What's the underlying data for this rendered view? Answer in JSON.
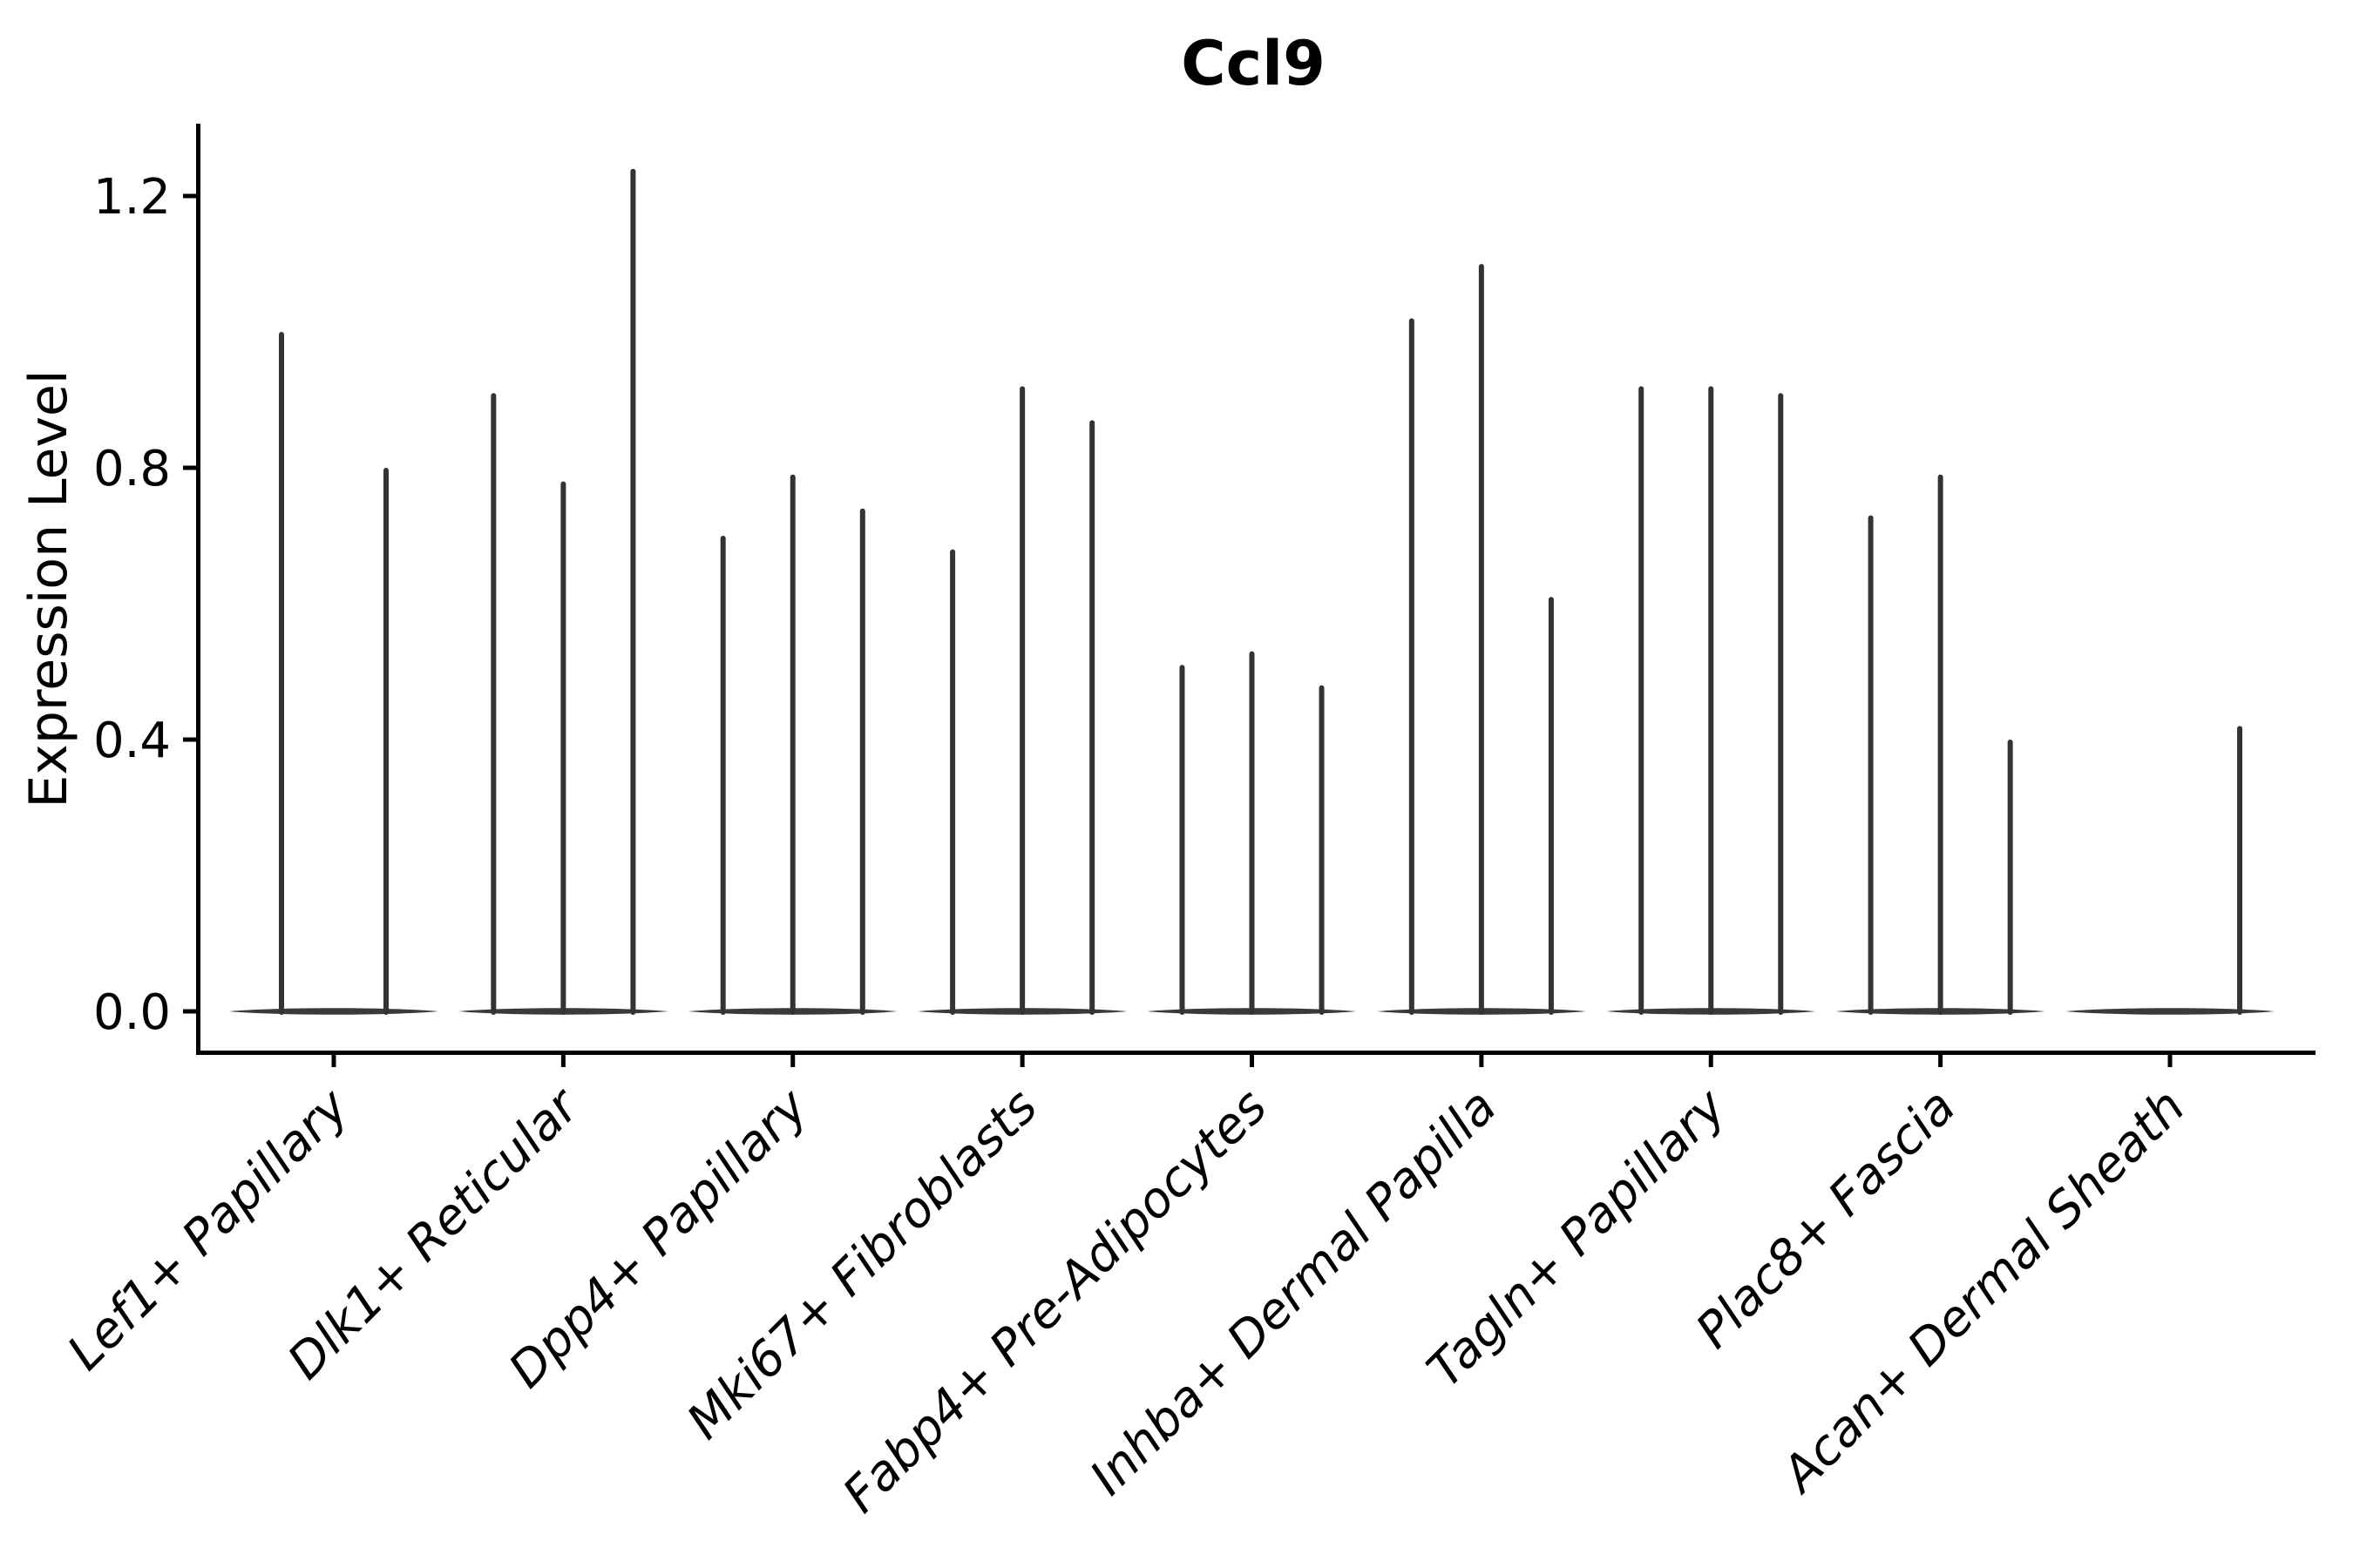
{
  "title": "Ccl9",
  "chart_data": {
    "type": "violin",
    "title": "Ccl9",
    "xlabel": "",
    "ylabel": "Expression Level",
    "ylim": [
      0,
      1.31
    ],
    "yticks": [
      0.0,
      0.4,
      0.8,
      1.2
    ],
    "ytick_labels": [
      "0.0",
      "0.4",
      "0.8",
      "1.2"
    ],
    "grid": false,
    "legend": "none",
    "categories": [
      "Lef1+ Papillary",
      "Dlk1+ Reticular",
      "Dpp4+ Papillary",
      "Mki67+ Fibroblasts",
      "Fabp4+ Pre-Adipocytes",
      "Inhba+ Dermal Papilla",
      "Tagln+ Papillary",
      "Plac8+ Fascia",
      "Acan+ Dermal Sheath"
    ],
    "series": [
      {
        "category": "Lef1+ Papillary",
        "baseline_value": 0.0,
        "spikes": [
          {
            "x_frac": -0.5,
            "value": 1.0
          },
          {
            "x_frac": 0.5,
            "value": 0.8
          }
        ]
      },
      {
        "category": "Dlk1+ Reticular",
        "baseline_value": 0.0,
        "spikes": [
          {
            "x_frac": -0.667,
            "value": 0.91
          },
          {
            "x_frac": 0.0,
            "value": 0.78
          },
          {
            "x_frac": 0.667,
            "value": 1.24
          }
        ]
      },
      {
        "category": "Dpp4+ Papillary",
        "baseline_value": 0.0,
        "spikes": [
          {
            "x_frac": -0.667,
            "value": 0.7
          },
          {
            "x_frac": 0.0,
            "value": 0.79
          },
          {
            "x_frac": 0.667,
            "value": 0.74
          }
        ]
      },
      {
        "category": "Mki67+ Fibroblasts",
        "baseline_value": 0.0,
        "spikes": [
          {
            "x_frac": -0.667,
            "value": 0.68
          },
          {
            "x_frac": 0.0,
            "value": 0.92
          },
          {
            "x_frac": 0.667,
            "value": 0.87
          }
        ]
      },
      {
        "category": "Fabp4+ Pre-Adipocytes",
        "baseline_value": 0.0,
        "spikes": [
          {
            "x_frac": -0.667,
            "value": 0.51
          },
          {
            "x_frac": 0.0,
            "value": 0.53
          },
          {
            "x_frac": 0.667,
            "value": 0.48
          }
        ]
      },
      {
        "category": "Inhba+ Dermal Papilla",
        "baseline_value": 0.0,
        "spikes": [
          {
            "x_frac": -0.667,
            "value": 1.02
          },
          {
            "x_frac": 0.0,
            "value": 1.1
          },
          {
            "x_frac": 0.667,
            "value": 0.61
          }
        ]
      },
      {
        "category": "Tagln+ Papillary",
        "baseline_value": 0.0,
        "spikes": [
          {
            "x_frac": -0.667,
            "value": 0.92
          },
          {
            "x_frac": 0.0,
            "value": 0.92
          },
          {
            "x_frac": 0.667,
            "value": 0.91
          }
        ]
      },
      {
        "category": "Plac8+ Fascia",
        "baseline_value": 0.0,
        "spikes": [
          {
            "x_frac": -0.667,
            "value": 0.73
          },
          {
            "x_frac": 0.0,
            "value": 0.79
          },
          {
            "x_frac": 0.667,
            "value": 0.4
          }
        ]
      },
      {
        "category": "Acan+ Dermal Sheath",
        "baseline_value": 0.0,
        "spikes": [
          {
            "x_frac": 0.667,
            "value": 0.42
          }
        ]
      }
    ],
    "style": {
      "background_color": "#ffffff",
      "axis_color": "#000000",
      "violin_color": "#3a3a3a",
      "spike_color": "#333333",
      "text_color": "#000000"
    }
  }
}
